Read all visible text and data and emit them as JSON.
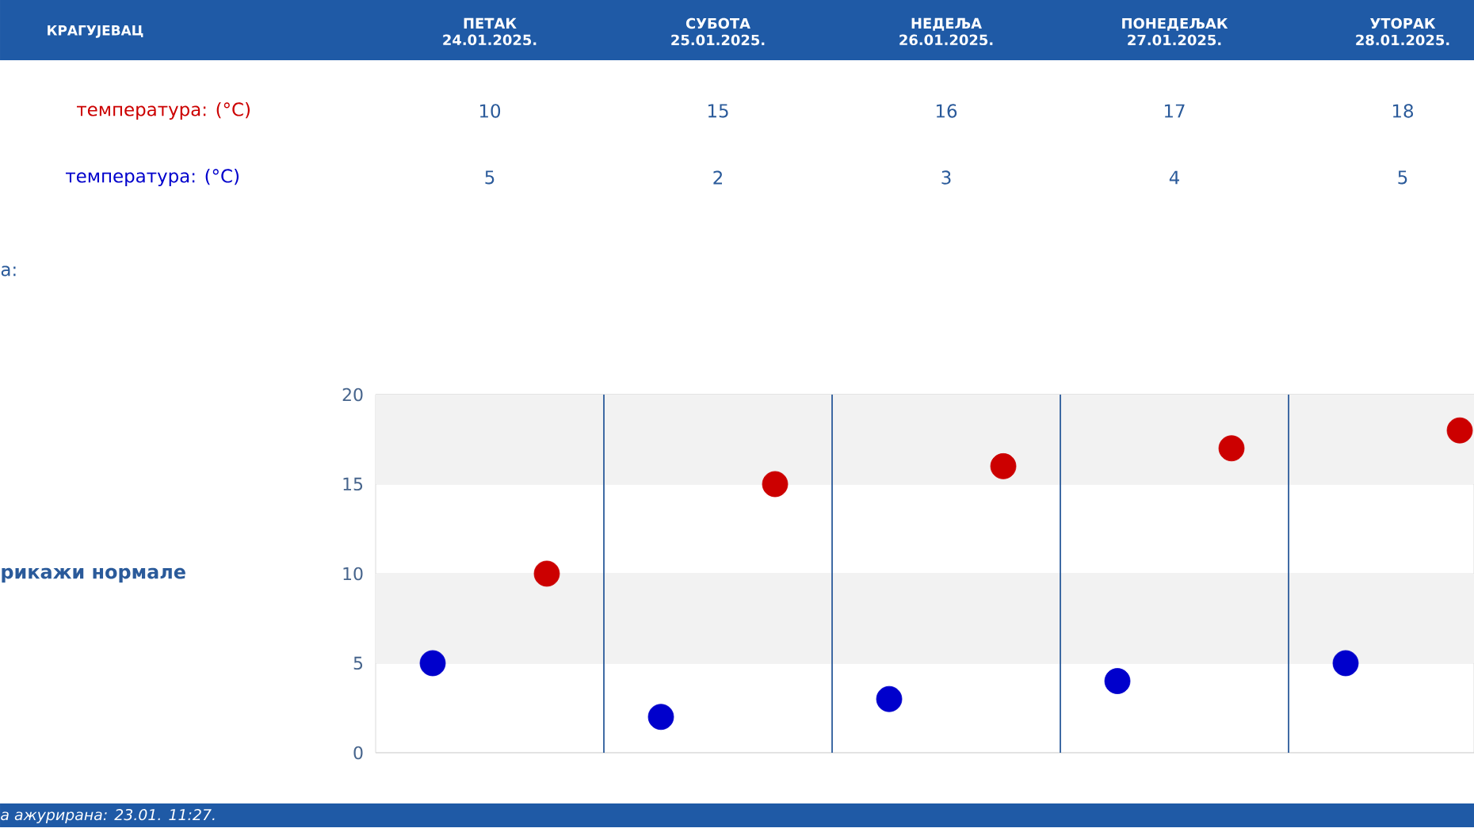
{
  "chart_data": {
    "type": "scatter",
    "title": "КРАГУЈЕВАЦ",
    "categories": [
      null,
      null,
      null,
      null,
      null
    ],
    "series": [
      {
        "name": "температура: (°C)",
        "color": "#cc0000",
        "values": [
          10,
          15,
          16,
          17,
          18
        ]
      },
      {
        "name": "температура: (°C)",
        "color": "#0000cc",
        "values": [
          5,
          2,
          3,
          4,
          5
        ]
      }
    ],
    "ylim": [
      0,
      20
    ],
    "yticks": [
      0,
      5,
      10,
      15,
      20
    ],
    "grid": true,
    "marker": "circle",
    "data_labels": true,
    "bands": [
      {
        "axis": "y",
        "from": 5,
        "to": 10,
        "color": "#f2f2f2"
      },
      {
        "axis": "y",
        "from": 15,
        "to": 20,
        "color": "#f2f2f2"
      }
    ],
    "annotations": [
      "а:",
      "рикажи нормале",
      "а ажурирана:  23.01. 11:27.",
      "ПЕТАК 24.01.2025.",
      "СУБОТА 25.01.2025.",
      "НЕДЕЉА 26.01.2025.",
      "ПОНЕДЕЉАК 27.01.2025.",
      "УТОРАК 28.01.2025."
    ]
  }
}
